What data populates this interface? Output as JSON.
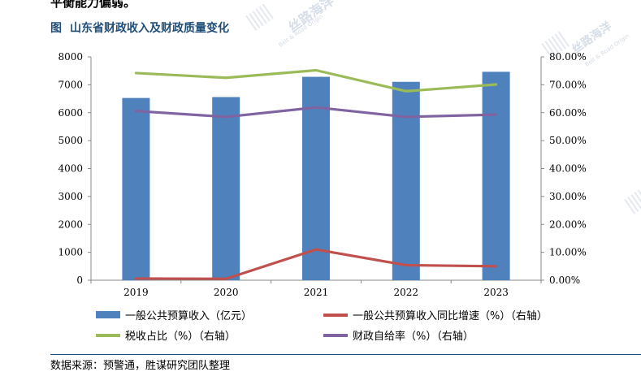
{
  "top_text": "平衡能力偏弱。",
  "figure": {
    "label": "图",
    "title": "山东省财政收入及财政质量变化"
  },
  "watermark": {
    "text": "丝路海洋",
    "sub": "Belt & Road Origin"
  },
  "source": "数据来源：预警通，胜谋研究团队整理",
  "chart_data": {
    "type": "bar",
    "categories": [
      "2019",
      "2020",
      "2021",
      "2022",
      "2023"
    ],
    "left_axis": {
      "ylim": [
        0,
        8000
      ],
      "ticks": [
        "0",
        "1000",
        "2000",
        "3000",
        "4000",
        "5000",
        "6000",
        "7000",
        "8000"
      ]
    },
    "right_axis": {
      "ylim": [
        0,
        80
      ],
      "ticks": [
        "0.00%",
        "10.00%",
        "20.00%",
        "30.00%",
        "40.00%",
        "50.00%",
        "60.00%",
        "70.00%",
        "80.00%"
      ]
    },
    "series": [
      {
        "name": "一般公共预算收入（亿元）",
        "type": "bar",
        "axis": "left",
        "color": "#4f81bd",
        "values": [
          6527,
          6560,
          7285,
          7105,
          7465
        ]
      },
      {
        "name": "一般公共预算收入同比增速（%）（右轴）",
        "type": "line",
        "axis": "right",
        "color": "#c0504d",
        "values": [
          0.6,
          0.5,
          11.0,
          5.4,
          5.0
        ]
      },
      {
        "name": "税收占比（%）（右轴）",
        "type": "line",
        "axis": "right",
        "color": "#9bbb59",
        "values": [
          74.2,
          72.5,
          75.2,
          67.7,
          70.1
        ]
      },
      {
        "name": "财政自给率（%）（右轴）",
        "type": "line",
        "axis": "right",
        "color": "#8064a2",
        "values": [
          60.6,
          58.5,
          61.9,
          58.5,
          59.3
        ]
      }
    ],
    "grid": false,
    "legend_position": "bottom"
  }
}
